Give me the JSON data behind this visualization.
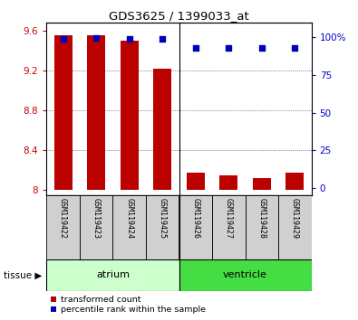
{
  "title": "GDS3625 / 1399033_at",
  "samples": [
    "GSM119422",
    "GSM119423",
    "GSM119424",
    "GSM119425",
    "GSM119426",
    "GSM119427",
    "GSM119428",
    "GSM119429"
  ],
  "transformed_count": [
    9.55,
    9.55,
    9.5,
    9.22,
    8.18,
    8.15,
    8.12,
    8.18
  ],
  "percentile_rank": [
    99.0,
    99.5,
    99.0,
    99.0,
    93.0,
    93.0,
    93.0,
    93.0
  ],
  "ylim_left": [
    7.95,
    9.68
  ],
  "ylim_right": [
    -5,
    110
  ],
  "yticks_left": [
    8.0,
    8.4,
    8.8,
    9.2,
    9.6
  ],
  "ytick_labels_left": [
    "8",
    "8.4",
    "8.8",
    "9.2",
    "9.6"
  ],
  "yticks_right": [
    0,
    25,
    50,
    75,
    100
  ],
  "ytick_labels_right": [
    "0",
    "25",
    "50",
    "75",
    "100%"
  ],
  "bar_color": "#bb0000",
  "dot_color": "#0000bb",
  "bar_width": 0.55,
  "tissue_groups": [
    {
      "label": "atrium",
      "start": 0,
      "end": 3,
      "color": "#ccffcc"
    },
    {
      "label": "ventricle",
      "start": 4,
      "end": 7,
      "color": "#44dd44"
    }
  ],
  "tissue_label": "tissue",
  "legend_bar_label": "transformed count",
  "legend_dot_label": "percentile rank within the sample",
  "grid_color": "#555555",
  "tick_area_color": "#d0d0d0",
  "gridlines_at": [
    8.4,
    8.8,
    9.2
  ]
}
